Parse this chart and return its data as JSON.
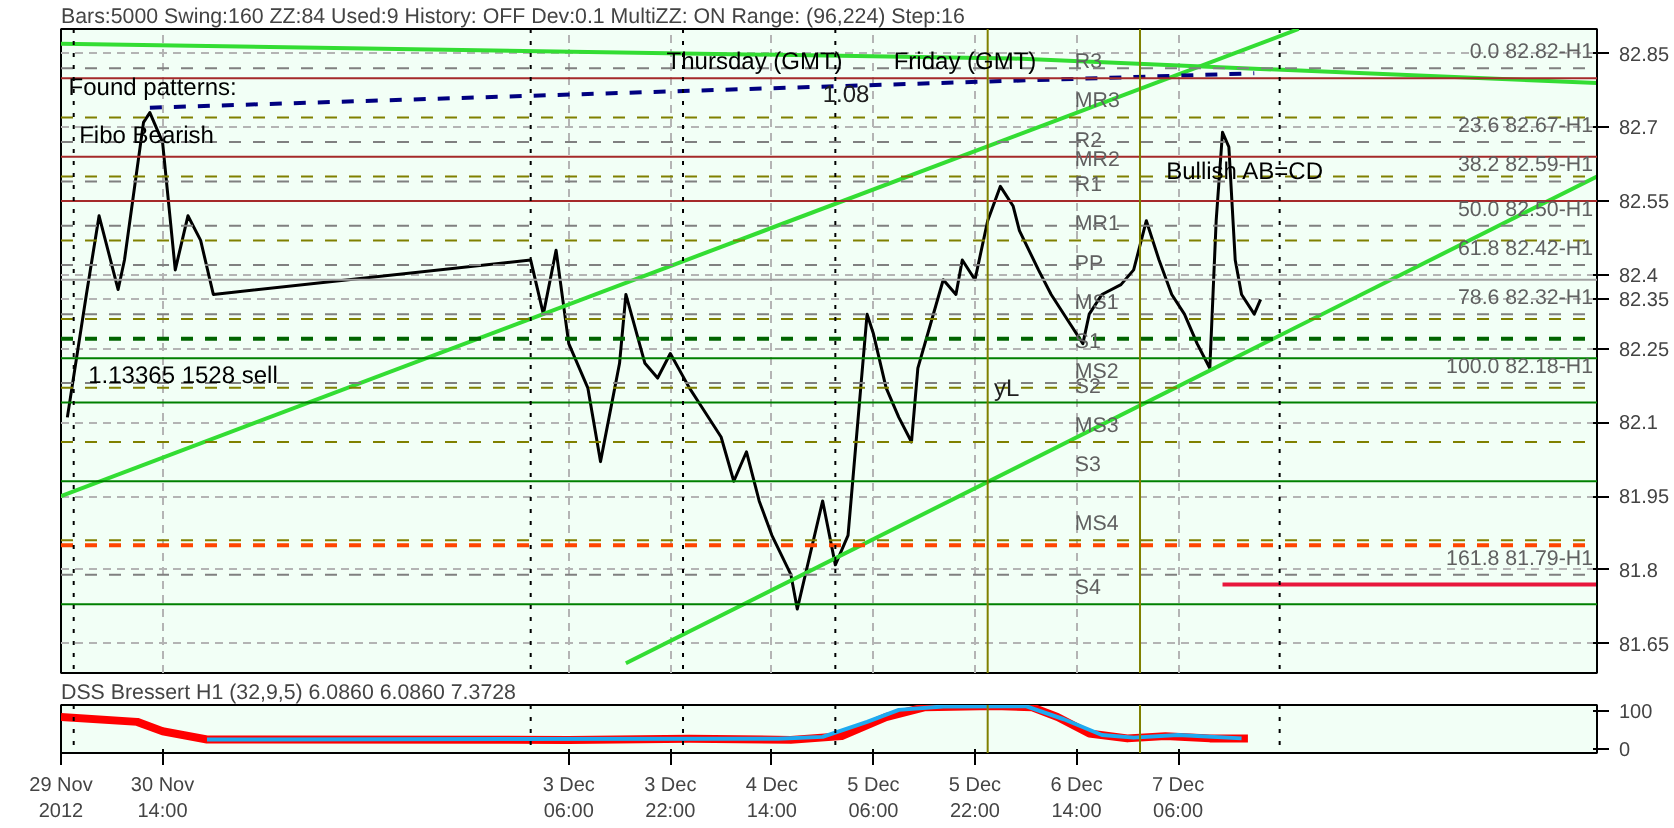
{
  "chart_data": [
    {
      "type": "line",
      "title": "Bars:5000  Swing:160  ZZ:84  Used:9  History: OFF Dev:0.1  MultiZZ: ON  Range: (96,224)  Step:16",
      "xlim": [
        "2012-11-29T22:00",
        "2012-12-10T00:00"
      ],
      "ylim": [
        81.59,
        82.9
      ],
      "xticks": [
        "2012-11-29T22:00",
        "2012-11-30T14:00",
        "2012-12-03T06:00",
        "2012-12-03T22:00",
        "2012-12-04T14:00",
        "2012-12-05T06:00",
        "2012-12-05T22:00",
        "2012-12-06T14:00",
        "2012-12-07T06:00"
      ],
      "yticks": [
        81.65,
        81.8,
        81.95,
        82.1,
        82.25,
        {
          "value": 82.35,
          "label": "82.35"
        },
        82.4,
        82.55,
        82.7,
        82.85
      ],
      "tick_labels": "y",
      "grid": true,
      "marker": "none",
      "line_style": "solid",
      "series": [
        {
          "color": "#000000",
          "x": [
            "2012-11-29T23:00",
            "2012-11-30T02:00",
            "2012-11-30T04:00",
            "2012-11-30T07:00",
            "2012-11-30T08:00",
            "2012-11-30T11:00",
            "2012-11-30T12:00",
            "2012-11-30T14:00",
            "2012-11-30T16:00",
            "2012-11-30T18:00",
            "2012-11-30T20:00",
            "2012-11-30T22:00",
            "2012-12-03T00:00",
            "2012-12-03T02:00",
            "2012-12-03T04:00",
            "2012-12-03T06:00",
            "2012-12-03T09:00",
            "2012-12-03T11:00",
            "2012-12-03T14:00",
            "2012-12-03T15:00",
            "2012-12-03T18:00",
            "2012-12-03T20:00",
            "2012-12-03T22:00",
            "2012-12-04T01:00",
            "2012-12-04T03:00",
            "2012-12-04T06:00",
            "2012-12-04T08:00",
            "2012-12-04T10:00",
            "2012-12-04T12:00",
            "2012-12-04T14:00",
            "2012-12-04T17:00",
            "2012-12-04T18:00",
            "2012-12-04T20:00",
            "2012-12-04T22:00",
            "2012-12-05T00:00",
            "2012-12-05T02:00",
            "2012-12-05T04:00",
            "2012-12-05T05:00",
            "2012-12-05T06:00",
            "2012-12-05T08:00",
            "2012-12-05T10:00",
            "2012-12-05T12:00",
            "2012-12-05T13:00",
            "2012-12-05T15:00",
            "2012-12-05T17:00",
            "2012-12-05T19:00",
            "2012-12-05T20:00",
            "2012-12-05T22:00",
            "2012-12-06T00:00",
            "2012-12-06T02:00",
            "2012-12-06T04:00",
            "2012-12-06T05:00",
            "2012-12-06T08:00",
            "2012-12-06T10:00",
            "2012-12-06T13:00",
            "2012-12-06T15:00",
            "2012-12-06T16:00",
            "2012-12-06T18:00",
            "2012-12-06T21:00",
            "2012-12-06T23:00",
            "2012-12-07T01:00",
            "2012-12-07T03:00",
            "2012-12-07T05:00",
            "2012-12-07T07:00",
            "2012-12-07T09:00",
            "2012-12-07T11:00",
            "2012-12-07T12:00",
            "2012-12-07T13:00",
            "2012-12-07T14:00",
            "2012-12-07T15:00",
            "2012-12-07T16:00",
            "2012-12-07T18:00",
            "2012-12-07T19:00"
          ],
          "values": [
            82.11,
            82.36,
            82.52,
            82.37,
            82.43,
            82.71,
            82.73,
            82.67,
            82.41,
            82.52,
            82.47,
            82.36,
            82.43,
            82.32,
            82.45,
            82.26,
            82.17,
            82.02,
            82.22,
            82.36,
            82.22,
            82.19,
            82.24,
            82.17,
            82.13,
            82.07,
            81.98,
            82.04,
            81.94,
            81.87,
            81.79,
            81.72,
            81.83,
            81.94,
            81.81,
            81.87,
            82.17,
            82.32,
            82.28,
            82.17,
            82.11,
            82.06,
            82.21,
            82.3,
            82.39,
            82.36,
            82.43,
            82.39,
            82.51,
            82.58,
            82.54,
            82.49,
            82.41,
            82.36,
            82.3,
            82.26,
            82.32,
            82.36,
            82.38,
            82.41,
            82.51,
            82.43,
            82.36,
            82.32,
            82.26,
            82.21,
            82.51,
            82.69,
            82.66,
            82.43,
            82.36,
            82.32,
            82.35
          ]
        },
        {
          "color": "#33dd33",
          "x": [
            "2012-11-29T22:00",
            "2012-12-08T01:00"
          ],
          "values": [
            81.95,
            82.9
          ]
        },
        {
          "color": "#33dd33",
          "x": [
            "2012-12-03T15:00",
            "2012-12-10T00:00"
          ],
          "values": [
            81.61,
            82.6
          ]
        },
        {
          "color": "#33dd33",
          "x": [
            "2012-11-29T22:00",
            "2012-12-06T04:00",
            "2012-12-10T00:00"
          ],
          "values": [
            82.87,
            82.84,
            82.79
          ]
        },
        {
          "color": "#000080",
          "line_style": "dashed",
          "x": [
            "2012-11-30T12:00",
            "2012-12-07T18:00"
          ],
          "values": [
            82.74,
            82.81
          ]
        },
        {
          "color": "#e8173c",
          "x": [
            "2012-12-07T13:00",
            "2012-12-10T00:00"
          ],
          "values": [
            81.77,
            81.77
          ]
        },
        {
          "color": "#006400",
          "line_style": "dashed",
          "x": [
            "2012-11-29T22:00",
            "2012-12-10T00:00"
          ],
          "values": [
            82.27,
            82.27
          ]
        },
        {
          "color": "#ff4500",
          "line_style": "dashed",
          "x": [
            "2012-11-29T22:00",
            "2012-12-10T00:00"
          ],
          "values": [
            81.85,
            81.85
          ]
        }
      ],
      "ref_lines": [
        {
          "axis": "y",
          "value": 82.8,
          "label": "R3",
          "color": "#a52a2a",
          "line_style": "solid"
        },
        {
          "axis": "y",
          "value": 82.72,
          "label": "MR3",
          "color": "#808000",
          "line_style": "dashed"
        },
        {
          "axis": "y",
          "value": 82.64,
          "label": "R2",
          "color": "#a52a2a",
          "line_style": "solid"
        },
        {
          "axis": "y",
          "value": 82.6,
          "label": "MR2",
          "color": "#808000",
          "line_style": "dashed"
        },
        {
          "axis": "y",
          "value": 82.55,
          "label": "R1",
          "color": "#a52a2a",
          "line_style": "solid"
        },
        {
          "axis": "y",
          "value": 82.47,
          "label": "MR1",
          "color": "#808000",
          "line_style": "dashed"
        },
        {
          "axis": "y",
          "value": 82.39,
          "label": "PP",
          "color": "#a0a0a0",
          "line_style": "solid"
        },
        {
          "axis": "y",
          "value": 82.31,
          "label": "MS1",
          "color": "#808000",
          "line_style": "dashed"
        },
        {
          "axis": "y",
          "value": 82.23,
          "label": "S1",
          "color": "#008000",
          "line_style": "solid"
        },
        {
          "axis": "y",
          "value": 82.17,
          "label": "MS2",
          "color": "#808000",
          "line_style": "dashed"
        },
        {
          "axis": "y",
          "value": 82.14,
          "label": "S2",
          "color": "#008000",
          "line_style": "solid"
        },
        {
          "axis": "y",
          "value": 82.06,
          "label": "MS3",
          "color": "#808000",
          "line_style": "dashed"
        },
        {
          "axis": "y",
          "value": 81.98,
          "label": "S3",
          "color": "#008000",
          "line_style": "solid"
        },
        {
          "axis": "y",
          "value": 81.86,
          "label": "MS4",
          "color": "#808000",
          "line_style": "dashed"
        },
        {
          "axis": "y",
          "value": 81.73,
          "label": "S4",
          "color": "#008000",
          "line_style": "solid"
        },
        {
          "axis": "y",
          "value": 82.82,
          "label": "0.0 82.82-H1",
          "color": "#808080",
          "line_style": "dashed"
        },
        {
          "axis": "y",
          "value": 82.67,
          "label": "23.6 82.67-H1",
          "color": "#808080",
          "line_style": "dashed"
        },
        {
          "axis": "y",
          "value": 82.59,
          "label": "38.2 82.59-H1",
          "color": "#808080",
          "line_style": "dashed"
        },
        {
          "axis": "y",
          "value": 82.5,
          "label": "50.0 82.50-H1",
          "color": "#808080",
          "line_style": "dashed"
        },
        {
          "axis": "y",
          "value": 82.42,
          "label": "61.8 82.42-H1",
          "color": "#808080",
          "line_style": "dashed"
        },
        {
          "axis": "y",
          "value": 82.32,
          "label": "78.6 82.32-H1",
          "color": "#808080",
          "line_style": "dashed"
        },
        {
          "axis": "y",
          "value": 82.18,
          "label": "100.0 82.18-H1",
          "color": "#808080",
          "line_style": "dashed"
        },
        {
          "axis": "y",
          "value": 81.79,
          "label": "161.8 81.79-H1",
          "color": "#808080",
          "line_style": "dashed"
        },
        {
          "axis": "x",
          "value": "2012-11-30T00:00",
          "color": "#000000",
          "line_style": "dotted"
        },
        {
          "axis": "x",
          "value": "2012-12-03T00:00",
          "color": "#000000",
          "line_style": "dotted"
        },
        {
          "axis": "x",
          "value": "2012-12-04T00:00",
          "color": "#000000",
          "line_style": "dotted"
        },
        {
          "axis": "x",
          "value": "2012-12-05T00:00",
          "color": "#000000",
          "line_style": "dotted"
        },
        {
          "axis": "x",
          "value": "2012-12-06T00:00",
          "color": "#808000",
          "line_style": "solid"
        },
        {
          "axis": "x",
          "value": "2012-12-07T00:00",
          "color": "#808000",
          "line_style": "solid"
        },
        {
          "axis": "x",
          "value": "2012-12-07T22:00",
          "color": "#000000",
          "line_style": "dotted"
        }
      ],
      "annotations": [
        "Found patterns:",
        "Thursday (GMT)",
        "Friday (GMT)",
        "Fibo Bearish",
        "1.13365 1528 sell",
        "Bullish AB=CD",
        {
          "text": "1.08",
          "x": "2012-12-04T22:00",
          "y": 82.77
        },
        {
          "text": "yL",
          "x": "2012-12-06T01:00",
          "y": 82.17
        }
      ]
    },
    {
      "type": "line",
      "title": "DSS Bressert H1 (32,9,5) 6.0860 6.0860 7.3728",
      "xlim": [
        "2012-11-29T22:00",
        "2012-12-10T00:00"
      ],
      "ylim": [
        -12,
        116
      ],
      "xticks": [
        {
          "value": "2012-11-29T22:00",
          "label": "29 Nov 2012"
        },
        {
          "value": "2012-11-30T14:00",
          "label": "30 Nov 14:00"
        },
        {
          "value": "2012-12-03T06:00",
          "label": "3 Dec 06:00"
        },
        {
          "value": "2012-12-03T22:00",
          "label": "3 Dec 22:00"
        },
        {
          "value": "2012-12-04T14:00",
          "label": "4 Dec 14:00"
        },
        {
          "value": "2012-12-05T06:00",
          "label": "5 Dec 06:00"
        },
        {
          "value": "2012-12-05T22:00",
          "label": "5 Dec 22:00"
        },
        {
          "value": "2012-12-06T14:00",
          "label": "6 Dec 14:00"
        },
        {
          "value": "2012-12-07T06:00",
          "label": "7 Dec 06:00"
        }
      ],
      "yticks": [
        0,
        100
      ],
      "marker": "none",
      "line_style": "solid",
      "series": [
        {
          "color": "#ff0000",
          "x": [
            "2012-11-29T22:00",
            "2012-11-30T10:00",
            "2012-11-30T14:00",
            "2012-11-30T21:00",
            "2012-12-03T06:00",
            "2012-12-04T01:00",
            "2012-12-04T17:00",
            "2012-12-05T01:00",
            "2012-12-05T08:00",
            "2012-12-05T14:00",
            "2012-12-06T01:00",
            "2012-12-06T07:00",
            "2012-12-06T11:00",
            "2012-12-06T16:00",
            "2012-12-06T22:00",
            "2012-12-07T04:00",
            "2012-12-07T11:00",
            "2012-12-07T17:00"
          ],
          "values": [
            84,
            71,
            46,
            24,
            23,
            26,
            23,
            33,
            84,
            110,
            113,
            110,
            84,
            40,
            27,
            33,
            27,
            27
          ]
        },
        {
          "color": "#1eaaf0",
          "x": [
            "2012-11-30T21:00",
            "2012-12-04T15:00",
            "2012-12-04T22:00",
            "2012-12-05T05:00",
            "2012-12-05T10:00",
            "2012-12-05T17:00",
            "2012-12-06T06:00",
            "2012-12-06T12:00",
            "2012-12-06T18:00",
            "2012-12-06T23:00",
            "2012-12-07T06:00",
            "2012-12-07T16:00"
          ],
          "values": [
            24,
            26,
            31,
            71,
            103,
            112,
            113,
            78,
            36,
            29,
            36,
            27
          ]
        }
      ],
      "ref_lines": [
        {
          "axis": "x",
          "value": "2012-11-30T00:00",
          "color": "#000000",
          "line_style": "dotted"
        },
        {
          "axis": "x",
          "value": "2012-12-03T00:00",
          "color": "#000000",
          "line_style": "dotted"
        },
        {
          "axis": "x",
          "value": "2012-12-04T00:00",
          "color": "#000000",
          "line_style": "dotted"
        },
        {
          "axis": "x",
          "value": "2012-12-05T00:00",
          "color": "#000000",
          "line_style": "dotted"
        },
        {
          "axis": "x",
          "value": "2012-12-06T00:00",
          "color": "#808000",
          "line_style": "solid"
        },
        {
          "axis": "x",
          "value": "2012-12-07T00:00",
          "color": "#808000",
          "line_style": "solid"
        },
        {
          "axis": "x",
          "value": "2012-12-07T22:00",
          "color": "#000000",
          "line_style": "dotted"
        }
      ]
    }
  ]
}
